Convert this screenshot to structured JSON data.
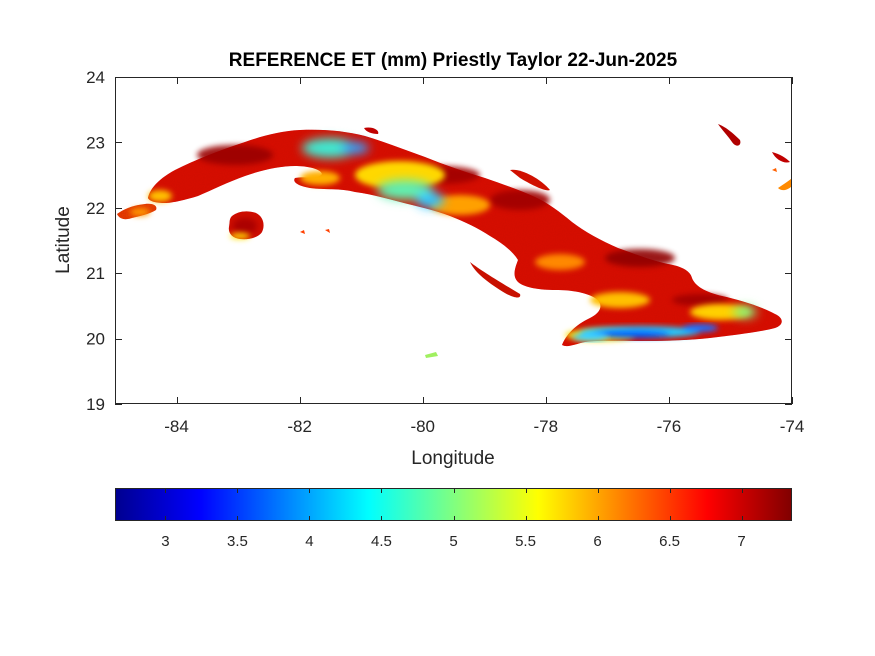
{
  "chart_data": {
    "type": "heatmap",
    "title": "REFERENCE ET (mm) Priestly Taylor 22-Jun-2025",
    "xlabel": "Longitude",
    "ylabel": "Latitude",
    "xlim": [
      -85,
      -74
    ],
    "ylim": [
      19,
      24
    ],
    "xticks": [
      -84,
      -82,
      -80,
      -78,
      -76,
      -74
    ],
    "yticks": [
      19,
      20,
      21,
      22,
      23,
      24
    ],
    "grid": false,
    "colormap": "jet",
    "colorbar": {
      "location": "bottom",
      "range": [
        2.65,
        7.35
      ],
      "ticks": [
        3,
        3.5,
        4,
        4.5,
        5,
        5.5,
        6,
        6.5,
        7
      ]
    },
    "region": "Cuba",
    "field_description": "Mostly high values 6.5-7.3 across the island; lower values 4-5.5 in the north-central highlands near -81 to -80 longitude; lowest values 3-4.5 along the southeastern coast near -77 to -75 longitude, latitude 20.0",
    "colors": {
      "high": "#b00000",
      "mid_high": "#ff2a00",
      "mid": "#ffd000",
      "low_mid": "#20e0ff",
      "low": "#0050ff"
    }
  }
}
